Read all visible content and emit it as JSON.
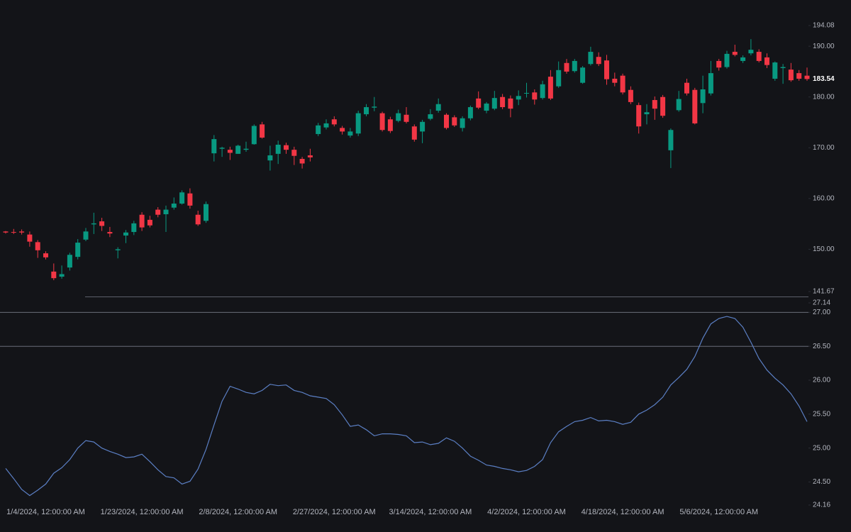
{
  "chart_data": [
    {
      "type": "candlestick",
      "up_color": "#089981",
      "down_color": "#f23645",
      "ylim": [
        140.69,
        199.11
      ],
      "yticks": [
        141.67,
        {
          "value": 150,
          "label": "150.00"
        },
        {
          "value": 160,
          "label": "160.00"
        },
        {
          "value": 170,
          "label": "170.00"
        },
        {
          "value": 180,
          "label": "180.00"
        },
        {
          "value": 190,
          "label": "190.00"
        },
        194.08
      ],
      "last_price": 183.54,
      "open": [
        153.5,
        153.4,
        153.5,
        152.9,
        151.4,
        149.2,
        145.6,
        144.6,
        146.4,
        148.5,
        151.9,
        154.9,
        155.5,
        153.4,
        149.8,
        152.7,
        153.4,
        156.8,
        155.8,
        157.8,
        156.9,
        158.2,
        159.0,
        161.0,
        156.8,
        155.6,
        168.9,
        169.8,
        169.6,
        168.8,
        169.6,
        170.7,
        174.6,
        167.5,
        168.8,
        170.5,
        169.6,
        167.8,
        168.5,
        172.7,
        174.0,
        175.6,
        173.9,
        172.4,
        172.8,
        176.6,
        177.9,
        176.8,
        175.6,
        175.3,
        176.5,
        174.2,
        173.2,
        175.7,
        177.3,
        176.5,
        176.0,
        173.9,
        175.8,
        179.7,
        177.3,
        177.7,
        180.0,
        179.7,
        179.5,
        180.7,
        180.9,
        179.8,
        184.0,
        182.1,
        186.7,
        185.1,
        182.8,
        186.5,
        187.9,
        187.2,
        183.6,
        184.2,
        181.4,
        178.4,
        176.6,
        179.4,
        180.0,
        169.5,
        177.4,
        182.8,
        181.4,
        178.8,
        180.7,
        187.1,
        185.9,
        188.9,
        187.1,
        188.6,
        188.9,
        187.8,
        183.6,
        185.7,
        185.4,
        184.7,
        184.2
      ],
      "high": [
        153.6,
        154.0,
        153.9,
        153.5,
        151.8,
        149.6,
        147.2,
        146.8,
        149.3,
        152.0,
        154.2,
        157.2,
        156.2,
        154.4,
        150.4,
        153.8,
        155.6,
        157.3,
        156.6,
        158.3,
        158.6,
        160.2,
        161.6,
        162.0,
        157.6,
        159.4,
        172.5,
        170.2,
        170.2,
        170.6,
        171.2,
        174.6,
        175.1,
        170.4,
        171.4,
        171.0,
        170.2,
        168.2,
        169.8,
        174.9,
        175.6,
        176.2,
        174.3,
        173.9,
        177.3,
        178.6,
        180.0,
        177.1,
        176.1,
        177.5,
        178.0,
        174.6,
        175.5,
        177.6,
        179.7,
        176.8,
        176.4,
        176.2,
        178.3,
        181.1,
        179.0,
        181.2,
        180.6,
        180.3,
        181.3,
        182.8,
        181.5,
        183.2,
        185.3,
        187.0,
        187.5,
        187.5,
        186.1,
        189.9,
        188.8,
        188.3,
        184.8,
        184.6,
        182.1,
        178.9,
        178.6,
        180.1,
        180.4,
        173.8,
        181.2,
        183.6,
        181.8,
        184.2,
        187.1,
        187.5,
        189.1,
        190.3,
        188.2,
        191.4,
        189.4,
        188.6,
        187.0,
        186.5,
        186.7,
        185.3,
        185.8
      ],
      "low": [
        153.1,
        153.0,
        152.9,
        150.5,
        148.3,
        148.0,
        143.9,
        144.2,
        145.8,
        148.0,
        151.6,
        153.0,
        153.6,
        152.4,
        148.2,
        151.2,
        152.8,
        153.6,
        154.3,
        156.3,
        153.4,
        157.8,
        158.8,
        158.0,
        154.6,
        155.2,
        167.3,
        168.2,
        167.6,
        168.8,
        169.2,
        170.6,
        171.8,
        165.5,
        166.8,
        168.8,
        166.6,
        165.9,
        167.3,
        172.3,
        173.6,
        174.2,
        172.6,
        172.0,
        172.3,
        176.2,
        177.2,
        173.2,
        172.9,
        175.0,
        174.8,
        171.2,
        170.9,
        175.4,
        176.9,
        173.6,
        174.1,
        173.2,
        175.4,
        177.6,
        176.8,
        177.4,
        177.6,
        176.0,
        178.4,
        179.9,
        178.5,
        179.5,
        179.4,
        181.8,
        184.6,
        184.8,
        182.6,
        186.2,
        186.1,
        182.4,
        182.1,
        180.5,
        178.6,
        172.8,
        174.6,
        175.5,
        175.9,
        166.0,
        177.1,
        180.3,
        174.6,
        176.8,
        180.3,
        185.2,
        185.6,
        188.0,
        186.7,
        188.2,
        186.8,
        185.7,
        183.2,
        182.6,
        183.0,
        183.2,
        183.2
      ],
      "close": [
        153.3,
        153.3,
        153.3,
        151.5,
        149.8,
        148.4,
        144.3,
        145.1,
        148.9,
        151.3,
        153.5,
        155.1,
        154.6,
        153.1,
        150.0,
        153.3,
        155.1,
        154.3,
        154.7,
        156.8,
        157.8,
        159.0,
        161.2,
        158.6,
        154.9,
        158.9,
        171.7,
        170.0,
        169.0,
        170.4,
        169.8,
        174.3,
        172.0,
        168.5,
        170.6,
        169.6,
        168.4,
        166.9,
        168.1,
        174.4,
        174.8,
        174.6,
        173.2,
        173.2,
        176.8,
        178.0,
        178.1,
        173.5,
        173.3,
        176.8,
        175.1,
        171.6,
        175.1,
        176.6,
        178.6,
        173.9,
        174.4,
        175.8,
        178.0,
        177.9,
        178.7,
        179.8,
        178.0,
        177.7,
        180.2,
        180.8,
        179.5,
        182.5,
        179.7,
        185.3,
        185.0,
        187.1,
        185.8,
        188.9,
        186.5,
        183.5,
        182.8,
        180.9,
        179.0,
        174.2,
        177.0,
        177.7,
        176.3,
        173.5,
        179.6,
        180.7,
        174.8,
        181.5,
        184.7,
        185.8,
        188.5,
        188.3,
        187.8,
        189.3,
        187.1,
        186.3,
        186.8,
        185.9,
        183.3,
        183.6,
        183.54
      ]
    },
    {
      "type": "line",
      "color": "#5b7fc4",
      "ylim": [
        24.16,
        27.14
      ],
      "yticks": [
        24.16,
        {
          "value": 24.5,
          "label": "24.50"
        },
        {
          "value": 25,
          "label": "25.00"
        },
        {
          "value": 25.5,
          "label": "25.50"
        },
        {
          "value": 26,
          "label": "26.00"
        },
        {
          "value": 26.5,
          "label": "26.50"
        },
        {
          "value": 27,
          "label": "27.00"
        },
        27.14
      ],
      "hlines": [
        27,
        26.5
      ],
      "x": [
        null,
        null,
        null,
        null,
        null,
        "1/4/2024, 12:00:00 AM",
        null,
        null,
        null,
        null,
        null,
        null,
        null,
        null,
        null,
        null,
        null,
        "1/23/2024, 12:00:00 AM",
        null,
        null,
        null,
        null,
        null,
        null,
        null,
        null,
        null,
        null,
        null,
        "2/8/2024, 12:00:00 AM",
        null,
        null,
        null,
        null,
        null,
        null,
        null,
        null,
        null,
        null,
        null,
        "2/27/2024, 12:00:00 AM",
        null,
        null,
        null,
        null,
        null,
        null,
        null,
        null,
        null,
        null,
        null,
        "3/14/2024, 12:00:00 AM",
        null,
        null,
        null,
        null,
        null,
        null,
        null,
        null,
        null,
        null,
        null,
        "4/2/2024, 12:00:00 AM",
        null,
        null,
        null,
        null,
        null,
        null,
        null,
        null,
        null,
        null,
        null,
        "4/18/2024, 12:00:00 AM",
        null,
        null,
        null,
        null,
        null,
        null,
        null,
        null,
        null,
        null,
        null,
        "5/6/2024, 12:00:00 AM",
        null,
        null,
        null,
        null,
        null,
        null,
        null,
        null,
        null,
        null,
        null
      ],
      "values": [
        24.7,
        24.55,
        24.39,
        24.3,
        24.38,
        24.47,
        24.63,
        24.71,
        24.83,
        25.0,
        25.11,
        25.09,
        25.0,
        24.95,
        24.91,
        24.86,
        24.87,
        24.91,
        24.8,
        24.68,
        24.58,
        24.56,
        24.47,
        24.51,
        24.69,
        24.98,
        25.34,
        25.69,
        25.91,
        25.87,
        25.82,
        25.8,
        25.85,
        25.94,
        25.92,
        25.93,
        25.85,
        25.82,
        25.77,
        25.75,
        25.73,
        25.64,
        25.49,
        25.32,
        25.34,
        25.27,
        25.18,
        25.21,
        25.21,
        25.2,
        25.18,
        25.08,
        25.09,
        25.05,
        25.07,
        25.15,
        25.1,
        25.0,
        24.88,
        24.82,
        24.75,
        24.73,
        24.7,
        24.68,
        24.65,
        24.67,
        24.73,
        24.83,
        25.08,
        25.24,
        25.32,
        25.39,
        25.41,
        25.45,
        25.4,
        25.41,
        25.39,
        25.35,
        25.38,
        25.5,
        25.56,
        25.64,
        25.75,
        25.93,
        26.04,
        26.16,
        26.35,
        26.62,
        26.83,
        26.91,
        26.94,
        26.91,
        26.78,
        26.56,
        26.32,
        26.15,
        26.03,
        25.93,
        25.8,
        25.62,
        25.39
      ]
    }
  ]
}
